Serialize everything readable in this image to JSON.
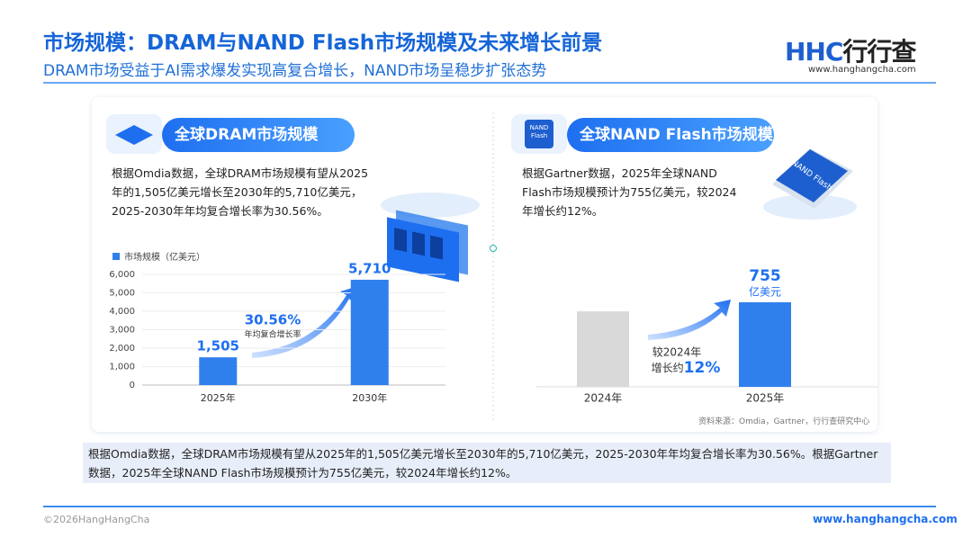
{
  "header": {
    "title": "市场规模：DRAM与NAND Flash市场规模及未来增长前景",
    "subtitle": "DRAM市场受益于AI需求爆发实现高复合增长，NAND市场呈稳步扩张态势",
    "logo_mark": "HHC",
    "logo_name": "行行查",
    "logo_url": "www.hanghangcha.com"
  },
  "left_panel": {
    "heading": "全球DRAM市场规模",
    "body": "根据Omdia数据，全球DRAM市场规模有望从2025年的1,505亿美元增长至2030年的5,710亿美元，2025-2030年年均复合增长率为30.56%。"
  },
  "right_panel": {
    "icon_label": "NAND Flash",
    "heading": "全球NAND Flash市场规模",
    "body": "根据Gartner数据，2025年全球NAND Flash市场规模预计为755亿美元，较2024年增长约12%。"
  },
  "chart_data": [
    {
      "type": "bar",
      "categories": [
        "2025年",
        "2030年"
      ],
      "series": [
        {
          "name": "市场规模（亿美元）",
          "color": "#2f80ed",
          "values": [
            1505,
            5710
          ],
          "value_labels": [
            "1,505",
            "5,710"
          ]
        }
      ],
      "ylim": [
        0,
        6000
      ],
      "yticks": [
        0,
        {
          "value": 1000,
          "label": "1,000"
        },
        {
          "value": 2000,
          "label": "2,000"
        },
        {
          "value": 3000,
          "label": "3,000"
        },
        {
          "value": 4000,
          "label": "4,000"
        },
        {
          "value": 5000,
          "label": "5,000"
        },
        {
          "value": 6000,
          "label": "6,000"
        }
      ],
      "grid": true,
      "annotations": [
        "30.56%",
        "年均复合增长率"
      ]
    },
    {
      "type": "bar",
      "categories": [
        "2024年",
        "2025年"
      ],
      "values": [
        674,
        755
      ],
      "colors": [
        "#d9d9d9",
        "#2f80ed"
      ],
      "unit_label": "亿美元",
      "annotations": [
        "较2024年",
        "增长约",
        "12%"
      ]
    }
  ],
  "source": "资料来源：Omdia，Gartner，行行查研究中心",
  "summary": "根据Omdia数据，全球DRAM市场规模有望从2025年的1,505亿美元增长至2030年的5,710亿美元，2025-2030年年均复合增长率为30.56%。根据Gartner数据，2025年全球NAND Flash市场规模预计为755亿美元，较2024年增长约12%。",
  "footer": {
    "copyright": "©2026HangHangCha",
    "url": "www.hanghangcha.com"
  }
}
